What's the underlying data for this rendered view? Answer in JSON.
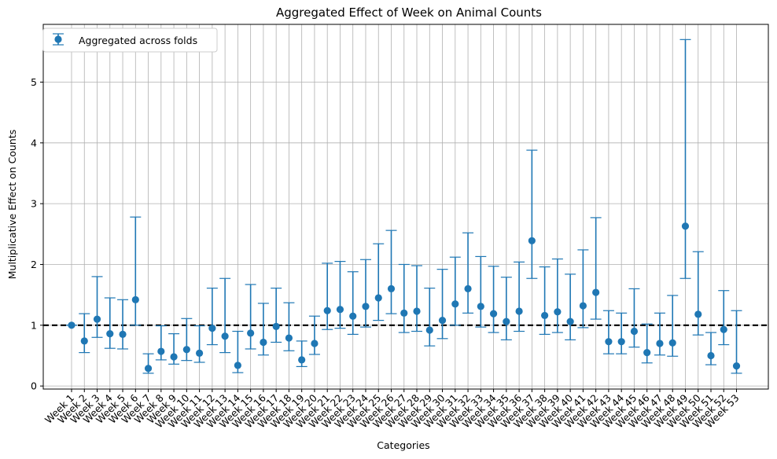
{
  "chart_data": {
    "type": "errorbar",
    "title": "Aggregated Effect of Week on Animal Counts",
    "xlabel": "Categories",
    "ylabel": "Multiplicative Effect on Counts",
    "ylim": [
      -0.05,
      5.95
    ],
    "yticks": [
      0,
      1,
      2,
      3,
      4,
      5
    ],
    "grid": true,
    "reference_line": 1.0,
    "legend": {
      "placement": "top-left",
      "entries": [
        "Aggregated across folds"
      ]
    },
    "colors": {
      "series": "#1f77b4",
      "grid": "#b0b0b0",
      "reference": "#000000"
    },
    "categories": [
      "Week 1",
      "Week 2",
      "Week 3",
      "Week 4",
      "Week 5",
      "Week 6",
      "Week 7",
      "Week 8",
      "Week 9",
      "Week 10",
      "Week 11",
      "Week 12",
      "Week 13",
      "Week 14",
      "Week 15",
      "Week 16",
      "Week 17",
      "Week 18",
      "Week 19",
      "Week 20",
      "Week 21",
      "Week 22",
      "Week 23",
      "Week 24",
      "Week 25",
      "Week 26",
      "Week 27",
      "Week 28",
      "Week 29",
      "Week 30",
      "Week 31",
      "Week 32",
      "Week 33",
      "Week 34",
      "Week 35",
      "Week 36",
      "Week 37",
      "Week 38",
      "Week 39",
      "Week 40",
      "Week 41",
      "Week 42",
      "Week 43",
      "Week 44",
      "Week 45",
      "Week 46",
      "Week 47",
      "Week 48",
      "Week 49",
      "Week 50",
      "Week 51",
      "Week 52",
      "Week 53"
    ],
    "series": [
      {
        "name": "Aggregated across folds",
        "values": [
          1.0,
          0.74,
          1.1,
          0.86,
          0.85,
          1.42,
          0.29,
          0.57,
          0.48,
          0.6,
          0.54,
          0.95,
          0.82,
          0.34,
          0.87,
          0.72,
          0.98,
          0.79,
          0.43,
          0.7,
          1.24,
          1.26,
          1.15,
          1.31,
          1.45,
          1.6,
          1.2,
          1.23,
          0.92,
          1.08,
          1.35,
          1.6,
          1.31,
          1.19,
          1.06,
          1.23,
          2.39,
          1.16,
          1.22,
          1.06,
          1.32,
          1.54,
          0.73,
          0.73,
          0.9,
          0.55,
          0.7,
          0.71,
          2.63,
          1.18,
          0.5,
          0.93,
          0.33
        ],
        "lower": [
          1.0,
          0.55,
          0.8,
          0.62,
          0.61,
          1.0,
          0.21,
          0.43,
          0.36,
          0.42,
          0.39,
          0.68,
          0.55,
          0.22,
          0.61,
          0.51,
          0.72,
          0.58,
          0.32,
          0.52,
          0.93,
          0.95,
          0.85,
          0.97,
          1.08,
          1.19,
          0.88,
          0.9,
          0.66,
          0.78,
          1.0,
          1.2,
          0.97,
          0.88,
          0.76,
          0.9,
          1.77,
          0.85,
          0.88,
          0.76,
          0.96,
          1.1,
          0.53,
          0.53,
          0.64,
          0.38,
          0.51,
          0.49,
          1.77,
          0.84,
          0.35,
          0.68,
          0.21
        ],
        "upper": [
          1.0,
          1.19,
          1.8,
          1.45,
          1.42,
          2.78,
          0.53,
          0.99,
          0.86,
          1.11,
          0.99,
          1.61,
          1.77,
          0.9,
          1.67,
          1.36,
          1.61,
          1.37,
          0.74,
          1.15,
          2.02,
          2.05,
          1.88,
          2.08,
          2.34,
          2.56,
          2.0,
          1.98,
          1.61,
          1.92,
          2.12,
          2.52,
          2.13,
          1.97,
          1.79,
          2.04,
          3.88,
          1.96,
          2.09,
          1.84,
          2.24,
          2.77,
          1.24,
          1.2,
          1.6,
          1.02,
          1.2,
          1.49,
          5.7,
          2.21,
          0.88,
          1.57,
          1.24
        ]
      }
    ]
  }
}
